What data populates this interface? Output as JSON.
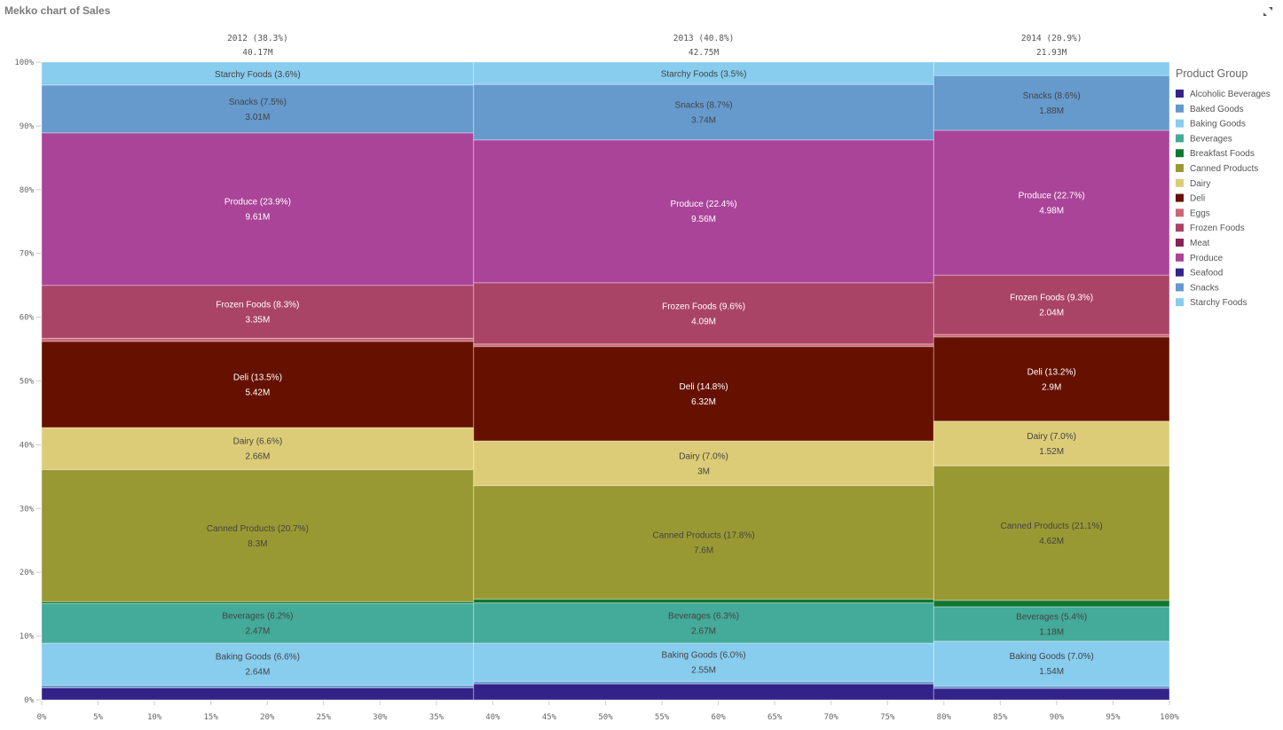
{
  "title": "Mekko chart of Sales",
  "icons": {
    "expand": "expand-icon"
  },
  "chart_data": {
    "type": "mekko",
    "title": "Mekko chart of Sales",
    "x_axis": {
      "range": [
        0,
        100
      ],
      "unit": "%",
      "ticks": [
        "0%",
        "5%",
        "10%",
        "15%",
        "20%",
        "25%",
        "30%",
        "35%",
        "40%",
        "45%",
        "50%",
        "55%",
        "60%",
        "65%",
        "70%",
        "75%",
        "80%",
        "85%",
        "90%",
        "95%",
        "100%"
      ]
    },
    "y_axis": {
      "range": [
        0,
        100
      ],
      "unit": "%",
      "ticks": [
        "0%",
        "10%",
        "20%",
        "30%",
        "40%",
        "50%",
        "60%",
        "70%",
        "80%",
        "90%",
        "100%"
      ]
    },
    "legend": {
      "title": "Product Group",
      "placement": "right",
      "items": [
        {
          "name": "Alcoholic Beverages",
          "color": "#332288"
        },
        {
          "name": "Baked Goods",
          "color": "#6699cc"
        },
        {
          "name": "Baking Goods",
          "color": "#88ccee"
        },
        {
          "name": "Beverages",
          "color": "#44aa99"
        },
        {
          "name": "Breakfast Foods",
          "color": "#117733"
        },
        {
          "name": "Canned Products",
          "color": "#999933"
        },
        {
          "name": "Dairy",
          "color": "#ddcc77"
        },
        {
          "name": "Deli",
          "color": "#661100"
        },
        {
          "name": "Eggs",
          "color": "#cc6677"
        },
        {
          "name": "Frozen Foods",
          "color": "#aa4466"
        },
        {
          "name": "Meat",
          "color": "#882255"
        },
        {
          "name": "Produce",
          "color": "#aa4499"
        },
        {
          "name": "Seafood",
          "color": "#332288"
        },
        {
          "name": "Snacks",
          "color": "#6699cc"
        },
        {
          "name": "Starchy Foods",
          "color": "#88ccee"
        }
      ]
    },
    "columns": [
      {
        "header": "2012 (38.3%)",
        "total": "40.17M",
        "width_pct": 38.3,
        "segments": [
          {
            "group": "Alcoholic Beverages",
            "pct": 1.9
          },
          {
            "group": "Baked Goods",
            "pct": 0.4
          },
          {
            "group": "Baking Goods",
            "pct": 6.6,
            "label": "Baking Goods (6.6%)",
            "value": "2.64M"
          },
          {
            "group": "Beverages",
            "pct": 6.2,
            "label": "Beverages (6.2%)",
            "value": "2.47M"
          },
          {
            "group": "Breakfast Foods",
            "pct": 0.3
          },
          {
            "group": "Canned Products",
            "pct": 20.7,
            "label": "Canned Products (20.7%)",
            "value": "8.3M"
          },
          {
            "group": "Dairy",
            "pct": 6.6,
            "label": "Dairy (6.6%)",
            "value": "2.66M"
          },
          {
            "group": "Deli",
            "pct": 13.5,
            "label": "Deli (13.5%)",
            "value": "5.42M"
          },
          {
            "group": "Eggs",
            "pct": 0.5
          },
          {
            "group": "Frozen Foods",
            "pct": 8.3,
            "label": "Frozen Foods (8.3%)",
            "value": "3.35M"
          },
          {
            "group": "Produce",
            "pct": 23.9,
            "label": "Produce (23.9%)",
            "value": "9.61M"
          },
          {
            "group": "Snacks",
            "pct": 7.5,
            "label": "Snacks (7.5%)",
            "value": "3.01M"
          },
          {
            "group": "Starchy Foods",
            "pct": 3.6,
            "label": "Starchy Foods (3.6%)"
          }
        ]
      },
      {
        "header": "2013 (40.8%)",
        "total": "42.75M",
        "width_pct": 40.8,
        "segments": [
          {
            "group": "Alcoholic Beverages",
            "pct": 2.5
          },
          {
            "group": "Baked Goods",
            "pct": 0.4
          },
          {
            "group": "Baking Goods",
            "pct": 6.0,
            "label": "Baking Goods (6.0%)",
            "value": "2.55M"
          },
          {
            "group": "Beverages",
            "pct": 6.3,
            "label": "Beverages (6.3%)",
            "value": "2.67M"
          },
          {
            "group": "Breakfast Foods",
            "pct": 0.6
          },
          {
            "group": "Canned Products",
            "pct": 17.8,
            "label": "Canned Products (17.8%)",
            "value": "7.6M"
          },
          {
            "group": "Dairy",
            "pct": 7.0,
            "label": "Dairy (7.0%)",
            "value": "3M"
          },
          {
            "group": "Deli",
            "pct": 14.8,
            "label": "Deli (14.8%)",
            "value": "6.32M"
          },
          {
            "group": "Eggs",
            "pct": 0.4
          },
          {
            "group": "Frozen Foods",
            "pct": 9.6,
            "label": "Frozen Foods (9.6%)",
            "value": "4.09M"
          },
          {
            "group": "Produce",
            "pct": 22.4,
            "label": "Produce (22.4%)",
            "value": "9.56M"
          },
          {
            "group": "Snacks",
            "pct": 8.7,
            "label": "Snacks (8.7%)",
            "value": "3.74M"
          },
          {
            "group": "Starchy Foods",
            "pct": 3.5,
            "label": "Starchy Foods (3.5%)"
          }
        ]
      },
      {
        "header": "2014 (20.9%)",
        "total": "21.93M",
        "width_pct": 20.9,
        "segments": [
          {
            "group": "Alcoholic Beverages",
            "pct": 1.8
          },
          {
            "group": "Baked Goods",
            "pct": 0.4
          },
          {
            "group": "Baking Goods",
            "pct": 7.0,
            "label": "Baking Goods (7.0%)",
            "value": "1.54M"
          },
          {
            "group": "Beverages",
            "pct": 5.4,
            "label": "Beverages (5.4%)",
            "value": "1.18M"
          },
          {
            "group": "Breakfast Foods",
            "pct": 1.0
          },
          {
            "group": "Canned Products",
            "pct": 21.1,
            "label": "Canned Products (21.1%)",
            "value": "4.62M"
          },
          {
            "group": "Dairy",
            "pct": 7.0,
            "label": "Dairy (7.0%)",
            "value": "1.52M"
          },
          {
            "group": "Deli",
            "pct": 13.2,
            "label": "Deli (13.2%)",
            "value": "2.9M"
          },
          {
            "group": "Eggs",
            "pct": 0.4
          },
          {
            "group": "Frozen Foods",
            "pct": 9.3,
            "label": "Frozen Foods (9.3%)",
            "value": "2.04M"
          },
          {
            "group": "Produce",
            "pct": 22.7,
            "label": "Produce (22.7%)",
            "value": "4.98M"
          },
          {
            "group": "Snacks",
            "pct": 8.6,
            "label": "Snacks (8.6%)",
            "value": "1.88M"
          },
          {
            "group": "Starchy Foods",
            "pct": 2.1
          }
        ]
      }
    ]
  }
}
